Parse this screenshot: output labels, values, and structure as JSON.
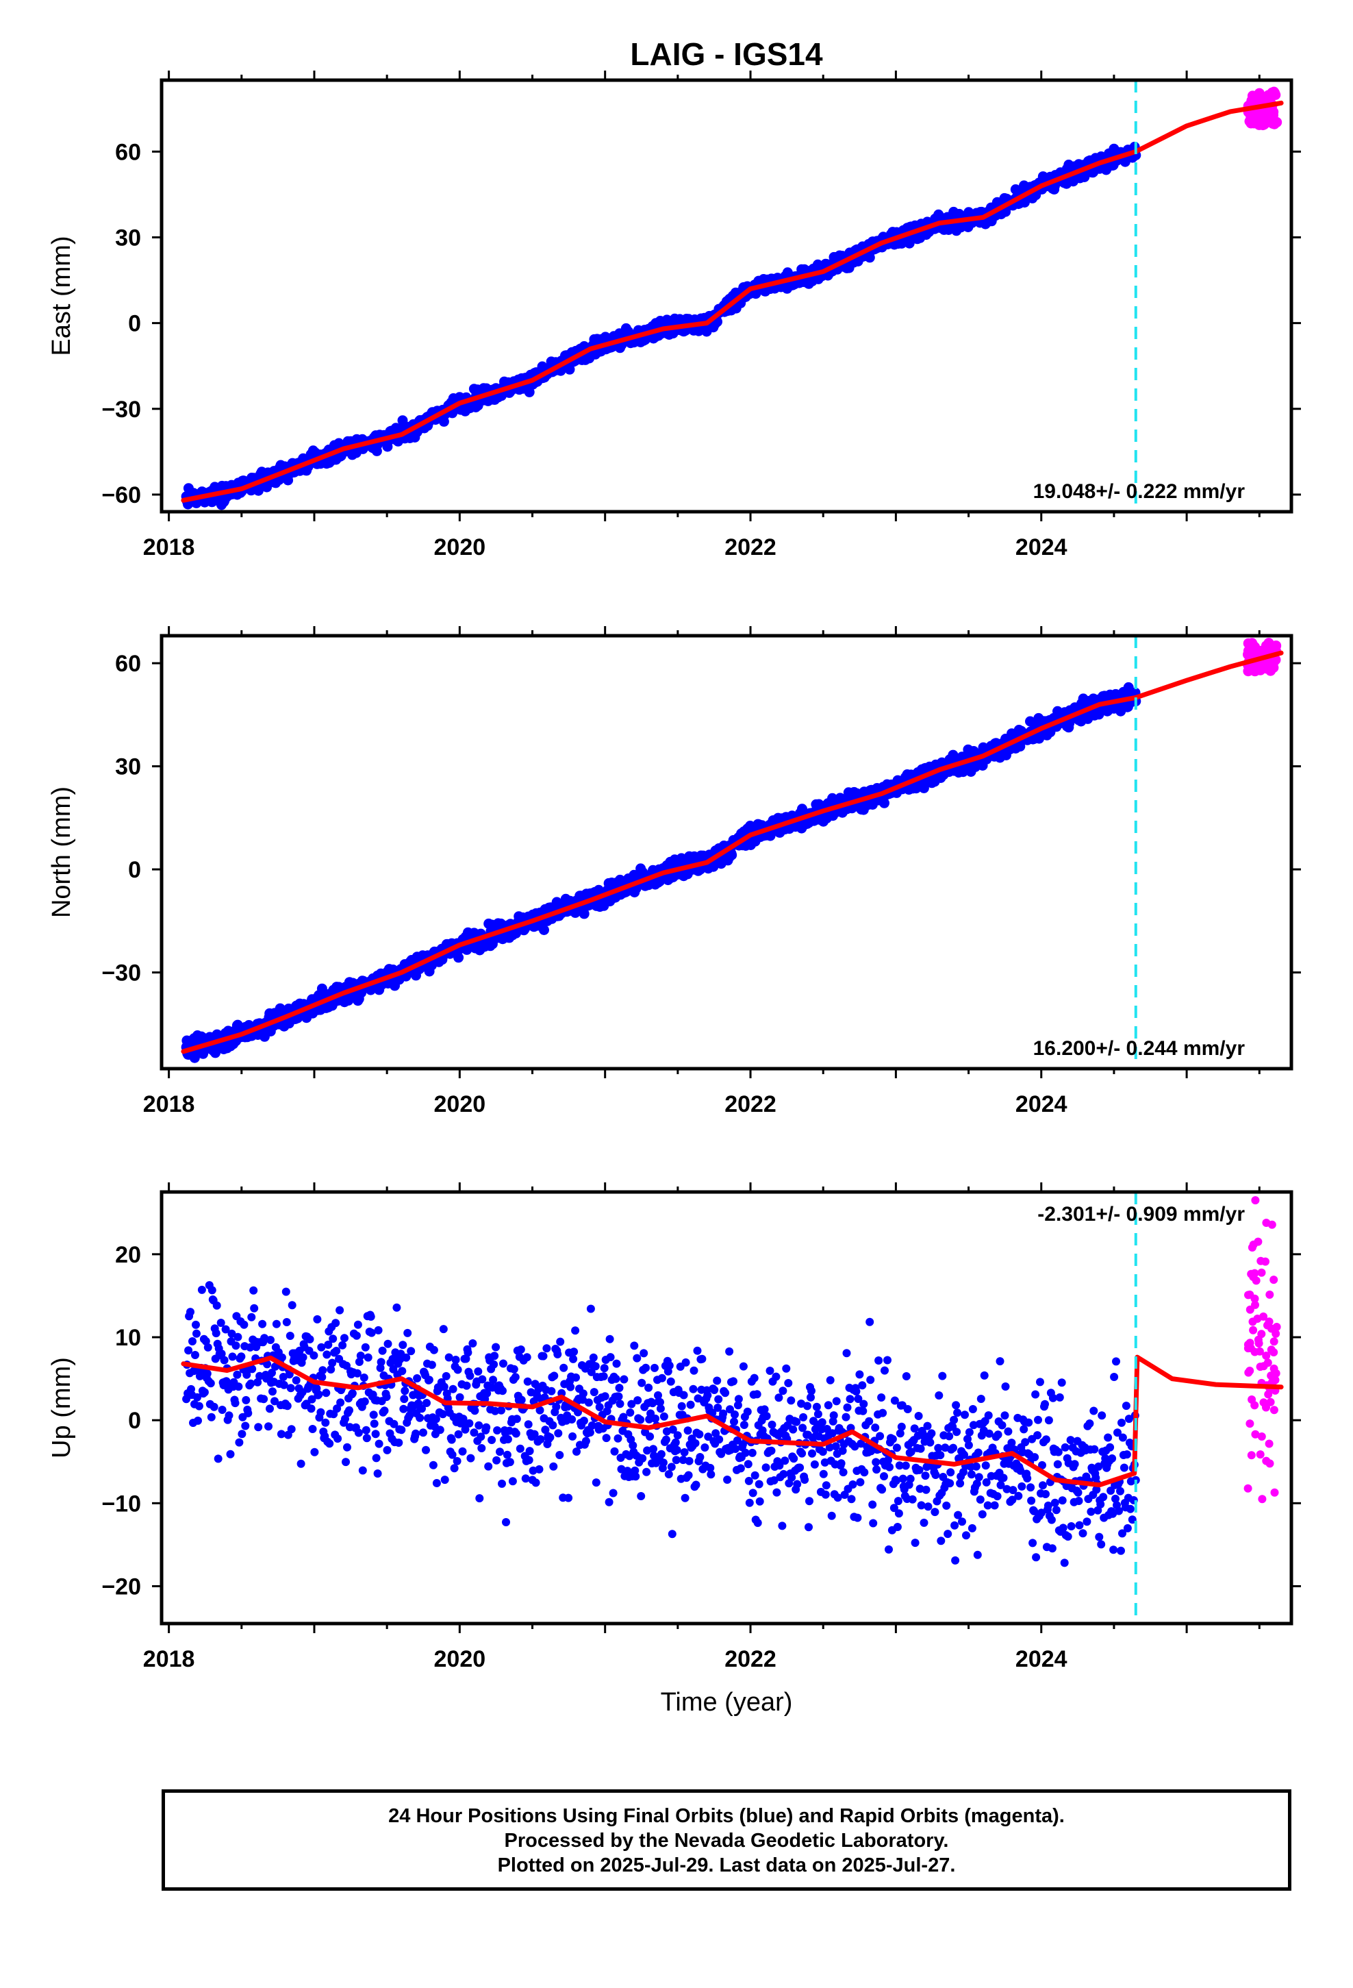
{
  "chart_data": {
    "type": "scatter",
    "title": "LAIG - IGS14",
    "xlabel": "Time (year)",
    "xlim": [
      2017.95,
      2025.72
    ],
    "xticks": [
      2018,
      2020,
      2022,
      2024
    ],
    "data_split_year": 2024.65,
    "colors": {
      "final_orbits": "#0000ff",
      "rapid_orbits": "#ff00ff",
      "model": "#ff0000",
      "split_line": "#22e3f0"
    },
    "panels": [
      {
        "component": "east",
        "ylabel": "East (mm)",
        "ylim": [
          -66,
          85
        ],
        "yticks": [
          -60,
          -30,
          0,
          30,
          60
        ],
        "rate_text": "19.048+/- 0.222 mm/yr",
        "rate_position": "bottom-right",
        "model": {
          "x": [
            2018.1,
            2018.5,
            2018.8,
            2019.2,
            2019.6,
            2020.0,
            2020.5,
            2020.9,
            2021.4,
            2021.7,
            2022.0,
            2022.5,
            2022.9,
            2023.3,
            2023.6,
            2024.0,
            2024.4,
            2024.65,
            2025.0,
            2025.3,
            2025.65
          ],
          "y": [
            -62,
            -58,
            -52,
            -44,
            -39,
            -28,
            -20,
            -9,
            -2,
            0,
            12,
            18,
            28,
            35,
            37,
            48,
            56,
            60,
            69,
            74,
            77
          ]
        },
        "final_scatter_mm": 1.8,
        "rapid_points": {
          "x_range": [
            2025.42,
            2025.62
          ],
          "y_range": [
            69,
            81
          ]
        }
      },
      {
        "component": "north",
        "ylabel": "North (mm)",
        "ylim": [
          -58,
          68
        ],
        "yticks": [
          -30,
          0,
          30,
          60
        ],
        "rate_text": "16.200+/- 0.244 mm/yr",
        "rate_position": "bottom-right",
        "model": {
          "x": [
            2018.1,
            2018.5,
            2018.8,
            2019.2,
            2019.6,
            2020.0,
            2020.5,
            2020.9,
            2021.4,
            2021.7,
            2022.0,
            2022.5,
            2022.9,
            2023.3,
            2023.6,
            2024.0,
            2024.4,
            2024.65,
            2025.0,
            2025.3,
            2025.65
          ],
          "y": [
            -53,
            -48,
            -43,
            -36,
            -30,
            -22,
            -15,
            -9,
            -1,
            2,
            10,
            17,
            22,
            29,
            33,
            41,
            48,
            50,
            55,
            59,
            63
          ]
        },
        "final_scatter_mm": 1.8,
        "rapid_points": {
          "x_range": [
            2025.42,
            2025.62
          ],
          "y_range": [
            57,
            66
          ]
        }
      },
      {
        "component": "up",
        "ylabel": "Up (mm)",
        "ylim": [
          -24.5,
          27.5
        ],
        "yticks": [
          -20,
          -10,
          0,
          10,
          20
        ],
        "rate_text": "-2.301+/- 0.909 mm/yr",
        "rate_position": "top-right",
        "model": {
          "x": [
            2018.1,
            2018.4,
            2018.7,
            2019.0,
            2019.3,
            2019.6,
            2019.9,
            2020.2,
            2020.5,
            2020.7,
            2021.0,
            2021.3,
            2021.7,
            2022.0,
            2022.5,
            2022.7,
            2023.0,
            2023.4,
            2023.8,
            2024.1,
            2024.4,
            2024.64,
            2024.66,
            2024.9,
            2025.2,
            2025.65
          ],
          "y": [
            6.8,
            6.0,
            7.5,
            4.6,
            3.9,
            5.0,
            2.1,
            2.0,
            1.6,
            2.8,
            -0.2,
            -0.9,
            0.5,
            -2.5,
            -2.9,
            -1.4,
            -4.5,
            -5.3,
            -4.0,
            -7.2,
            -7.8,
            -6.4,
            7.6,
            5.0,
            4.3,
            4.0
          ]
        },
        "final_scatter_mm": 5.2,
        "rapid_points": {
          "x_range": [
            2025.42,
            2025.62
          ],
          "y_range": [
            -9.5,
            26.5
          ]
        }
      }
    ]
  },
  "footer": {
    "line1": "24 Hour Positions Using Final Orbits (blue) and Rapid Orbits (magenta).",
    "line2": "Processed by the Nevada Geodetic Laboratory.",
    "line3": "Plotted on 2025-Jul-29. Last data on 2025-Jul-27."
  }
}
